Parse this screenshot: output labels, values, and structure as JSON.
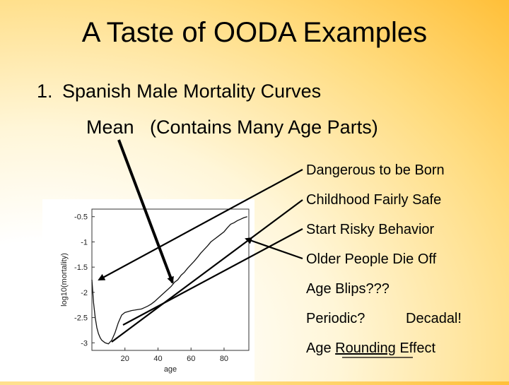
{
  "slide": {
    "title": "A Taste of OODA Examples",
    "item_number": "1.",
    "item_text": "Spanish Male Mortality Curves",
    "subheading": "Mean   (Contains Many Age Parts)"
  },
  "annotations": {
    "dangerous": "Dangerous to be Born",
    "childhood": "Childhood Fairly Safe",
    "risky": "Start Risky Behavior",
    "older": "Older People Die Off",
    "blips": "Age Blips???",
    "periodic": "Periodic?",
    "decadal": "Decadal!",
    "rounding_pre": "Age ",
    "rounding_u": "Rounding",
    "rounding_post": " Effect"
  },
  "chart_data": {
    "type": "line",
    "xlabel": "age",
    "ylabel": "log10(mortality)",
    "xlim": [
      0,
      95
    ],
    "ylim": [
      -3.15,
      -0.35
    ],
    "x_ticks": [
      20,
      40,
      60,
      80
    ],
    "y_ticks": [
      -0.5,
      -1,
      -1.5,
      -2,
      -2.5,
      -3
    ],
    "y_tick_labels": [
      "-0.5",
      "-1",
      "-1.5",
      "-2",
      "-2.5",
      "-3"
    ],
    "series": [
      {
        "x": [
          0,
          1,
          2,
          3,
          4,
          5,
          6,
          8,
          10,
          12,
          14,
          16,
          18,
          20,
          22,
          24,
          26,
          28,
          30,
          32,
          34,
          36,
          38,
          40,
          42,
          44,
          46,
          48,
          50,
          52,
          54,
          56,
          58,
          60,
          62,
          64,
          66,
          68,
          70,
          72,
          74,
          76,
          78,
          80,
          82,
          84,
          86,
          88,
          90,
          92,
          94
        ],
        "y": [
          -1.75,
          -2.2,
          -2.5,
          -2.7,
          -2.82,
          -2.9,
          -2.95,
          -3.0,
          -3.02,
          -2.95,
          -2.8,
          -2.6,
          -2.45,
          -2.4,
          -2.38,
          -2.36,
          -2.35,
          -2.34,
          -2.33,
          -2.3,
          -2.27,
          -2.23,
          -2.18,
          -2.12,
          -2.06,
          -2.0,
          -1.94,
          -1.88,
          -1.8,
          -1.75,
          -1.66,
          -1.6,
          -1.52,
          -1.45,
          -1.38,
          -1.3,
          -1.22,
          -1.15,
          -1.08,
          -1.0,
          -0.95,
          -0.9,
          -0.85,
          -0.8,
          -0.72,
          -0.65,
          -0.62,
          -0.58,
          -0.55,
          -0.52,
          -0.5
        ]
      }
    ]
  }
}
